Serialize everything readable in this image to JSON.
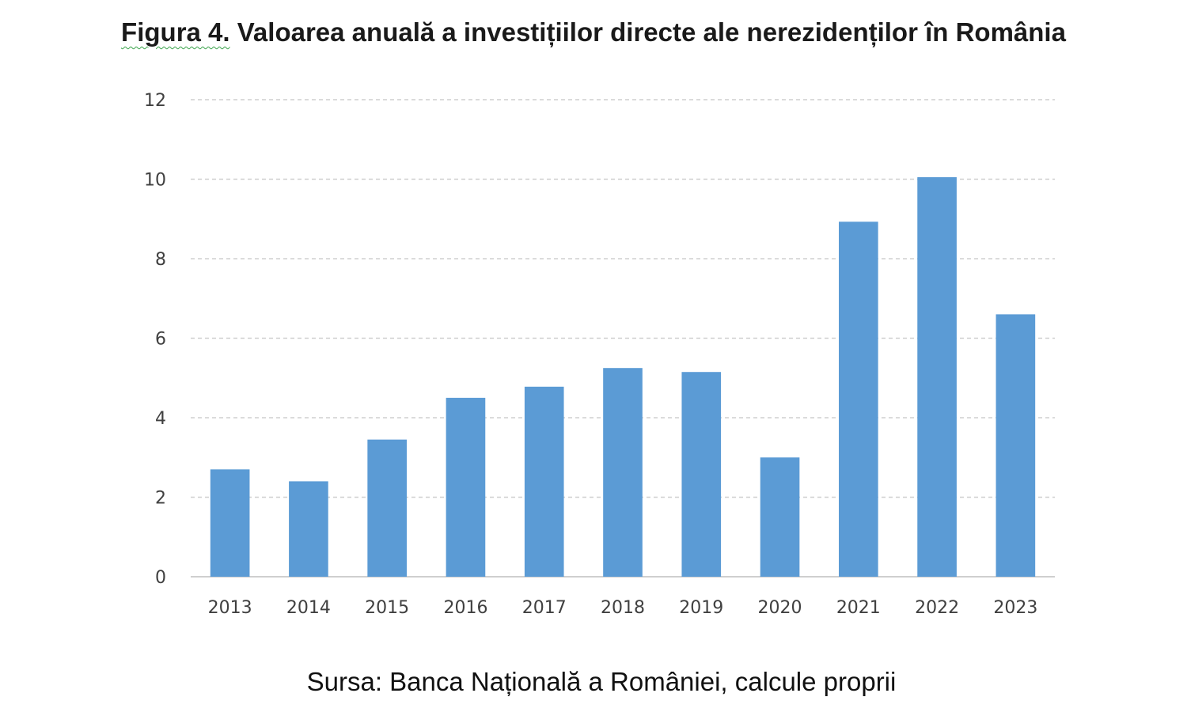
{
  "figure": {
    "title_label": "Figura 4.",
    "title_text": " Valoarea anuală a investițiilor directe ale nerezidenților în România",
    "source": "Sursa: Banca Națională a României, calcule proprii"
  },
  "chart_data": {
    "type": "bar",
    "categories": [
      "2013",
      "2014",
      "2015",
      "2016",
      "2017",
      "2018",
      "2019",
      "2020",
      "2021",
      "2022",
      "2023"
    ],
    "values": [
      2.7,
      2.4,
      3.45,
      4.5,
      4.78,
      5.25,
      5.15,
      3.0,
      8.93,
      10.05,
      6.6
    ],
    "ylim": [
      0,
      12
    ],
    "yticks": [
      "0",
      "2",
      "4",
      "6",
      "8",
      "10",
      "12"
    ],
    "grid": true,
    "bar_color": "#5b9bd5",
    "xlabel": "",
    "ylabel": ""
  }
}
